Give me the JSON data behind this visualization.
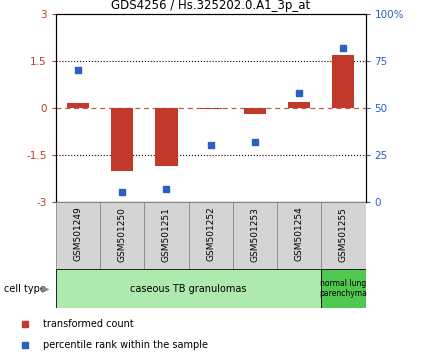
{
  "title": "GDS4256 / Hs.325202.0.A1_3p_at",
  "samples": [
    "GSM501249",
    "GSM501250",
    "GSM501251",
    "GSM501252",
    "GSM501253",
    "GSM501254",
    "GSM501255"
  ],
  "red_values": [
    0.15,
    -2.0,
    -1.85,
    -0.02,
    -0.2,
    0.2,
    1.7
  ],
  "blue_values": [
    70,
    5,
    7,
    30,
    32,
    58,
    82
  ],
  "ylim_left": [
    -3,
    3
  ],
  "ylim_right": [
    0,
    100
  ],
  "yticks_left": [
    -3,
    -1.5,
    0,
    1.5,
    3
  ],
  "yticks_right": [
    0,
    25,
    50,
    75,
    100
  ],
  "ytick_labels_left": [
    "-3",
    "-1.5",
    "0",
    "1.5",
    "3"
  ],
  "ytick_labels_right": [
    "0",
    "25",
    "50",
    "75",
    "100%"
  ],
  "hlines": [
    1.5,
    0,
    -1.5
  ],
  "red_color": "#C0392B",
  "blue_color": "#2B60C0",
  "bar_width": 0.5,
  "group1_label": "caseous TB granulomas",
  "group1_color": "#AEEAAE",
  "group2_label": "normal lung\nparenchyma",
  "group2_color": "#50C850",
  "cell_type_label": "cell type",
  "legend_red": "transformed count",
  "legend_blue": "percentile rank within the sample"
}
